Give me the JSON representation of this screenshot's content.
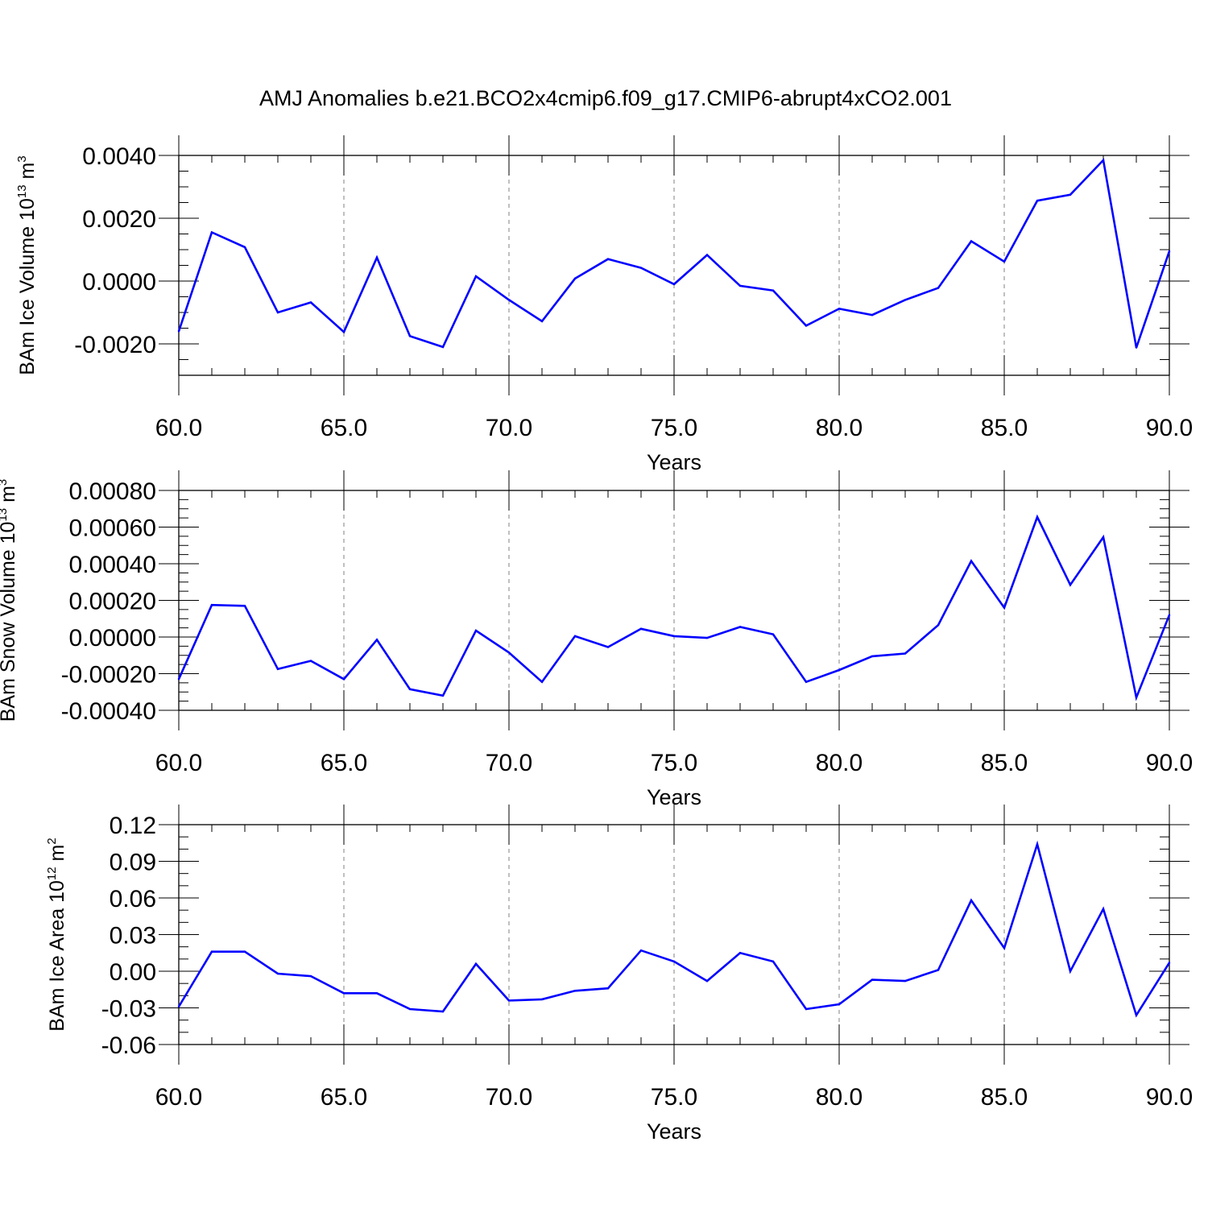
{
  "figure": {
    "title": "AMJ Anomalies b.e21.BCO2x4cmip6.f09_g17.CMIP6-abrupt4xCO2.001"
  },
  "style": {
    "line_color": "#0000ff",
    "axis_color": "#000000",
    "grid_color": "#808080"
  },
  "chart_data": [
    {
      "type": "line",
      "xlabel": "Years",
      "ylabel": {
        "main": "BAm Ice Volume 10",
        "exp": "13",
        "unit": " m",
        "unit_exp": "3"
      },
      "xlim": [
        60,
        90
      ],
      "ylim": [
        -0.003,
        0.004
      ],
      "xticks": [
        60,
        65,
        70,
        75,
        80,
        85,
        90
      ],
      "xtick_labels": [
        "60.0",
        "65.0",
        "70.0",
        "75.0",
        "80.0",
        "85.0",
        "90.0"
      ],
      "yticks": [
        -0.002,
        0.0,
        0.002,
        0.004
      ],
      "ytick_labels": [
        "-0.0020",
        "0.0000",
        "0.0020",
        "0.0040"
      ],
      "x_minor_step": 1,
      "y_minor_step": 0.0005,
      "vertical_grid": [
        65,
        70,
        75,
        80,
        85
      ],
      "x": [
        60,
        61,
        62,
        63,
        64,
        65,
        66,
        67,
        68,
        69,
        70,
        71,
        72,
        73,
        74,
        75,
        76,
        77,
        78,
        79,
        80,
        81,
        82,
        83,
        84,
        85,
        86,
        87,
        88,
        89,
        90
      ],
      "series": [
        {
          "values": [
            -0.0016,
            0.00155,
            0.00108,
            -0.001,
            -0.00068,
            -0.00162,
            0.00075,
            -0.00175,
            -0.0021,
            0.00015,
            -0.0006,
            -0.00128,
            8e-05,
            0.0007,
            0.00042,
            -0.0001,
            0.00083,
            -0.00015,
            -0.0003,
            -0.00142,
            -0.00088,
            -0.00108,
            -0.0006,
            -0.00022,
            0.00127,
            0.00062,
            0.00256,
            0.00275,
            0.00385,
            -0.00212,
            0.00095
          ]
        }
      ]
    },
    {
      "type": "line",
      "xlabel": "Years",
      "ylabel": {
        "main": "BAm Snow Volume 10",
        "exp": "13",
        "unit": " m",
        "unit_exp": "3"
      },
      "xlim": [
        60,
        90
      ],
      "ylim": [
        -0.0004,
        0.0008
      ],
      "xticks": [
        60,
        65,
        70,
        75,
        80,
        85,
        90
      ],
      "xtick_labels": [
        "60.0",
        "65.0",
        "70.0",
        "75.0",
        "80.0",
        "85.0",
        "90.0"
      ],
      "yticks": [
        -0.0004,
        -0.0002,
        0.0,
        0.0002,
        0.0004,
        0.0006,
        0.0008
      ],
      "ytick_labels": [
        "-0.00040",
        "-0.00020",
        "0.00000",
        "0.00020",
        "0.00040",
        "0.00060",
        "0.00080"
      ],
      "x_minor_step": 1,
      "y_minor_step": 5e-05,
      "vertical_grid": [
        65,
        70,
        75,
        80,
        85
      ],
      "x": [
        60,
        61,
        62,
        63,
        64,
        65,
        66,
        67,
        68,
        69,
        70,
        71,
        72,
        73,
        74,
        75,
        76,
        77,
        78,
        79,
        80,
        81,
        82,
        83,
        84,
        85,
        86,
        87,
        88,
        89,
        90
      ],
      "series": [
        {
          "values": [
            -0.00023,
            0.000175,
            0.00017,
            -0.000175,
            -0.00013,
            -0.00023,
            -1.5e-05,
            -0.000285,
            -0.00032,
            3.5e-05,
            -8.5e-05,
            -0.000245,
            5e-06,
            -5.5e-05,
            4.5e-05,
            5e-06,
            -5e-06,
            5.5e-05,
            1.5e-05,
            -0.000245,
            -0.00018,
            -0.000105,
            -9e-05,
            6.5e-05,
            0.000415,
            0.00016,
            0.000655,
            0.000285,
            0.000545,
            -0.00033,
            0.00012
          ]
        }
      ]
    },
    {
      "type": "line",
      "xlabel": "Years",
      "ylabel": {
        "main": "BAm Ice Area 10",
        "exp": "12",
        "unit": " m",
        "unit_exp": "2"
      },
      "xlim": [
        60,
        90
      ],
      "ylim": [
        -0.06,
        0.12
      ],
      "xticks": [
        60,
        65,
        70,
        75,
        80,
        85,
        90
      ],
      "xtick_labels": [
        "60.0",
        "65.0",
        "70.0",
        "75.0",
        "80.0",
        "85.0",
        "90.0"
      ],
      "yticks": [
        -0.06,
        -0.03,
        0.0,
        0.03,
        0.06,
        0.09,
        0.12
      ],
      "ytick_labels": [
        "-0.06",
        "-0.03",
        "0.00",
        "0.03",
        "0.06",
        "0.09",
        "0.12"
      ],
      "x_minor_step": 1,
      "y_minor_step": 0.01,
      "vertical_grid": [
        65,
        70,
        75,
        80,
        85
      ],
      "x": [
        60,
        61,
        62,
        63,
        64,
        65,
        66,
        67,
        68,
        69,
        70,
        71,
        72,
        73,
        74,
        75,
        76,
        77,
        78,
        79,
        80,
        81,
        82,
        83,
        84,
        85,
        86,
        87,
        88,
        89,
        90
      ],
      "series": [
        {
          "values": [
            -0.029,
            0.016,
            0.016,
            -0.002,
            -0.004,
            -0.018,
            -0.018,
            -0.031,
            -0.033,
            0.006,
            -0.024,
            -0.023,
            -0.016,
            -0.014,
            0.017,
            0.008,
            -0.008,
            0.015,
            0.008,
            -0.031,
            -0.027,
            -0.007,
            -0.008,
            0.001,
            0.058,
            0.019,
            0.104,
            0.0,
            0.051,
            -0.036,
            0.007
          ]
        }
      ]
    }
  ]
}
